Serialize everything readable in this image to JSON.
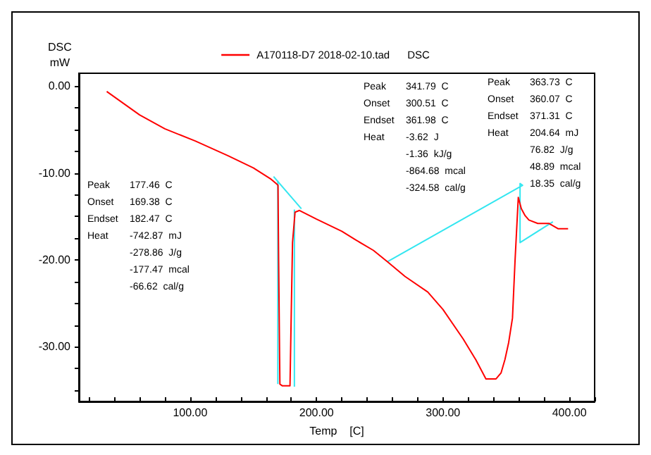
{
  "chart_data": {
    "type": "line",
    "xlabel": "Temp    [C]",
    "ylabel": "DSC\nmW",
    "legend": "top",
    "xlim": [
      12,
      420
    ],
    "ylim": [
      -36.3,
      1.5
    ],
    "xticks": [
      {
        "value": 20,
        "label": null
      },
      {
        "value": 40,
        "label": null
      },
      {
        "value": 60,
        "label": null
      },
      {
        "value": 80,
        "label": null
      },
      {
        "value": 100,
        "label": "100.00"
      },
      {
        "value": 120,
        "label": null
      },
      {
        "value": 140,
        "label": null
      },
      {
        "value": 160,
        "label": null
      },
      {
        "value": 180,
        "label": null
      },
      {
        "value": 200,
        "label": "200.00"
      },
      {
        "value": 220,
        "label": null
      },
      {
        "value": 240,
        "label": null
      },
      {
        "value": 260,
        "label": null
      },
      {
        "value": 280,
        "label": null
      },
      {
        "value": 300,
        "label": "300.00"
      },
      {
        "value": 320,
        "label": null
      },
      {
        "value": 340,
        "label": null
      },
      {
        "value": 360,
        "label": null
      },
      {
        "value": 380,
        "label": null
      },
      {
        "value": 400,
        "label": "400.00"
      },
      {
        "value": 420,
        "label": null
      }
    ],
    "yticks": [
      {
        "value": 0,
        "label": "0.00"
      },
      {
        "value": -2.5,
        "label": null
      },
      {
        "value": -5,
        "label": null
      },
      {
        "value": -7.5,
        "label": null
      },
      {
        "value": -10,
        "label": "-10.00"
      },
      {
        "value": -12.5,
        "label": null
      },
      {
        "value": -15,
        "label": null
      },
      {
        "value": -17.5,
        "label": null
      },
      {
        "value": -20,
        "label": "-20.00"
      },
      {
        "value": -22.5,
        "label": null
      },
      {
        "value": -25,
        "label": null
      },
      {
        "value": -27.5,
        "label": null
      },
      {
        "value": -30,
        "label": "-30.00"
      },
      {
        "value": -32.5,
        "label": null
      },
      {
        "value": -35,
        "label": null
      }
    ],
    "series": [
      {
        "name": "A170118-D7 2018-02-10.tad      DSC",
        "color": "#ff0000",
        "x": [
          34,
          60,
          80,
          104,
          130,
          150,
          164,
          168,
          169.5,
          170,
          171,
          173,
          177,
          179,
          180,
          181,
          183,
          186.5,
          200,
          220,
          231,
          245,
          256,
          270,
          288,
          300,
          316,
          326,
          334,
          342,
          346,
          349,
          352,
          355,
          357,
          359.6,
          362,
          365,
          368,
          375,
          384,
          391,
          399
        ],
        "values": [
          -0.6,
          -3.3,
          -4.9,
          -6.3,
          -8,
          -9.4,
          -10.7,
          -11.2,
          -11.4,
          -20,
          -34.3,
          -34.5,
          -34.5,
          -34.5,
          -26,
          -18,
          -14.5,
          -14.3,
          -15.3,
          -16.7,
          -17.7,
          -18.9,
          -20.2,
          -21.9,
          -23.7,
          -25.7,
          -29.1,
          -31.5,
          -33.7,
          -33.7,
          -33,
          -31.5,
          -29.5,
          -26.7,
          -20.2,
          -12.8,
          -14.1,
          -14.9,
          -15.4,
          -15.8,
          -15.8,
          -16.4,
          -16.4
        ]
      },
      {
        "color": "#33e6f0",
        "x": [
          166,
          188
        ],
        "values": [
          -10.4,
          -14.1
        ]
      },
      {
        "color": "#33e6f0",
        "x": [
          169.38,
          169.38
        ],
        "values": [
          -10.9,
          -34.3
        ]
      },
      {
        "color": "#33e6f0",
        "x": [
          182.47,
          182.47
        ],
        "values": [
          -14.2,
          -34.6
        ]
      },
      {
        "color": "#33e6f0",
        "x": [
          256,
          363,
          361,
          361,
          387
        ],
        "values": [
          -20.2,
          -11.4,
          -11.2,
          -18,
          -15.6
        ]
      }
    ],
    "annotations": [
      "Peak\t177.46  C\nOnset\t169.38  C\nEndset\t182.47  C\nHeat\t-742.87  mJ\n\t-278.86  J/g\n\t-177.47  mcal\n\t-66.62  cal/g",
      "Peak\t341.79  C\nOnset\t300.51  C\nEndset\t361.98  C\nHeat\t-3.62  J\n\t-1.36  kJ/g\n\t-864.68  mcal\n\t-324.58  cal/g",
      "Peak\t363.73  C\nOnset\t360.07  C\nEndset\t371.31  C\nHeat\t204.64  mJ\n\t76.82  J/g\n\t48.89  mcal\n\t18.35  cal/g"
    ]
  }
}
